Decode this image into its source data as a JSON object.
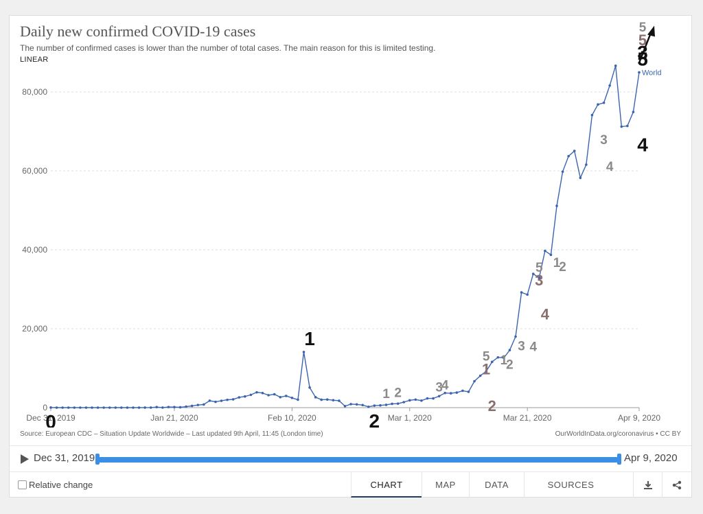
{
  "header": {
    "title": "Daily new confirmed COVID-19 cases",
    "subtitle": "The number of confirmed cases is lower than the number of total cases. The main reason for this is limited testing.",
    "scale_toggle": "LINEAR"
  },
  "footer": {
    "source": "Source: European CDC – Situation Update Worldwide – Last updated 9th April, 11:45 (London time)",
    "credit": "OurWorldInData.org/coronavirus • CC BY"
  },
  "timeline": {
    "start_label": "Dec 31, 2019",
    "end_label": "Apr 9, 2020"
  },
  "controls": {
    "relative_change_label": "Relative change",
    "tabs": [
      "CHART",
      "MAP",
      "DATA",
      "SOURCES"
    ],
    "active_tab": "CHART",
    "icons": [
      "download-icon",
      "share-icon"
    ]
  },
  "colors": {
    "series": "#3a64b0",
    "annotation_black": "#111111",
    "annotation_gray": "#8a8a8a",
    "annotation_brown": "#8b6f6f"
  },
  "chart_data": {
    "type": "line",
    "title": "Daily new confirmed COVID-19 cases",
    "y_ticks": [
      0,
      20000,
      40000,
      60000,
      80000
    ],
    "y_tick_labels": [
      "0",
      "20,000",
      "40,000",
      "60,000",
      "80,000"
    ],
    "ylim": [
      0,
      88000
    ],
    "x_ticks": [
      "Dec 31, 2019",
      "Jan 21, 2020",
      "Feb 10, 2020",
      "Mar 1, 2020",
      "Mar 21, 2020",
      "Apr 9, 2020"
    ],
    "x_tick_days": [
      0,
      21,
      41,
      61,
      81,
      100
    ],
    "grid": true,
    "series": [
      {
        "name": "World",
        "x_start": "Dec 31, 2019",
        "values": [
          27,
          0,
          0,
          0,
          0,
          0,
          0,
          0,
          0,
          0,
          0,
          0,
          1,
          0,
          1,
          0,
          4,
          17,
          136,
          19,
          151,
          140,
          97,
          259,
          441,
          665,
          787,
          1753,
          1466,
          1740,
          1980,
          2102,
          2590,
          2829,
          3235,
          3887,
          3694,
          3143,
          3385,
          2652,
          2973,
          2467,
          2015,
          14108,
          5090,
          2641,
          2008,
          2048,
          1888,
          1749,
          391,
          889,
          823,
          648,
          214,
          508,
          570,
          702,
          962,
          1012,
          1393,
          1854,
          2043,
          1772,
          2339,
          2331,
          2907,
          3712,
          3635,
          3813,
          4272,
          4012,
          6687,
          8077,
          9193,
          11590,
          12741,
          12610,
          14575,
          18002,
          29198,
          28652,
          33902,
          32868,
          39721,
          38722,
          51134,
          59799,
          63740,
          65055,
          58218,
          61576,
          74133,
          76836,
          77262,
          81622,
          86638,
          71214,
          71387,
          74926,
          84966
        ]
      }
    ],
    "annotations": [
      {
        "label": "0",
        "day": 0,
        "value": 0,
        "role": "black"
      },
      {
        "label": "1",
        "day": 44,
        "value": 14108,
        "role": "black"
      },
      {
        "label": "2",
        "day": 55,
        "value": 214,
        "role": "black"
      },
      {
        "label": "1",
        "day": 57,
        "value": 702,
        "role": "gray"
      },
      {
        "label": "2",
        "day": 59,
        "value": 962,
        "role": "gray"
      },
      {
        "label": "3",
        "day": 66,
        "value": 2331,
        "role": "gray"
      },
      {
        "label": "4",
        "day": 67,
        "value": 2907,
        "role": "gray"
      },
      {
        "label": "1",
        "day": 74,
        "value": 6687,
        "role": "brown"
      },
      {
        "label": "5",
        "day": 74,
        "value": 6687,
        "role": "gray"
      },
      {
        "label": "2",
        "day": 75,
        "value": 4012,
        "role": "brown"
      },
      {
        "label": "1",
        "day": 77,
        "value": 9193,
        "role": "gray"
      },
      {
        "label": "2",
        "day": 78,
        "value": 8077,
        "role": "gray"
      },
      {
        "label": "3",
        "day": 80,
        "value": 12741,
        "role": "gray"
      },
      {
        "label": "4",
        "day": 82,
        "value": 12610,
        "role": "gray"
      },
      {
        "label": "3",
        "day": 83,
        "value": 29198,
        "role": "brown"
      },
      {
        "label": "5",
        "day": 83,
        "value": 29198,
        "role": "gray"
      },
      {
        "label": "4",
        "day": 84,
        "value": 28652,
        "role": "brown"
      },
      {
        "label": "1",
        "day": 86,
        "value": 33902,
        "role": "gray"
      },
      {
        "label": "2",
        "day": 87,
        "value": 32868,
        "role": "gray"
      },
      {
        "label": "3",
        "day": 94,
        "value": 65055,
        "role": "gray"
      },
      {
        "label": "4",
        "day": 95,
        "value": 58218,
        "role": "gray"
      },
      {
        "label": "3",
        "day": 102,
        "value": 86638,
        "role": "black"
      },
      {
        "label": "5",
        "day": 102,
        "value": 86638,
        "role": "brown"
      },
      {
        "label": "5",
        "day": 102,
        "value": 86638,
        "role": "gray"
      },
      {
        "label": "4",
        "day": 103,
        "value": 71214,
        "role": "black"
      },
      {
        "label": "5",
        "day": 105,
        "value": 84966,
        "role": "black"
      }
    ]
  }
}
